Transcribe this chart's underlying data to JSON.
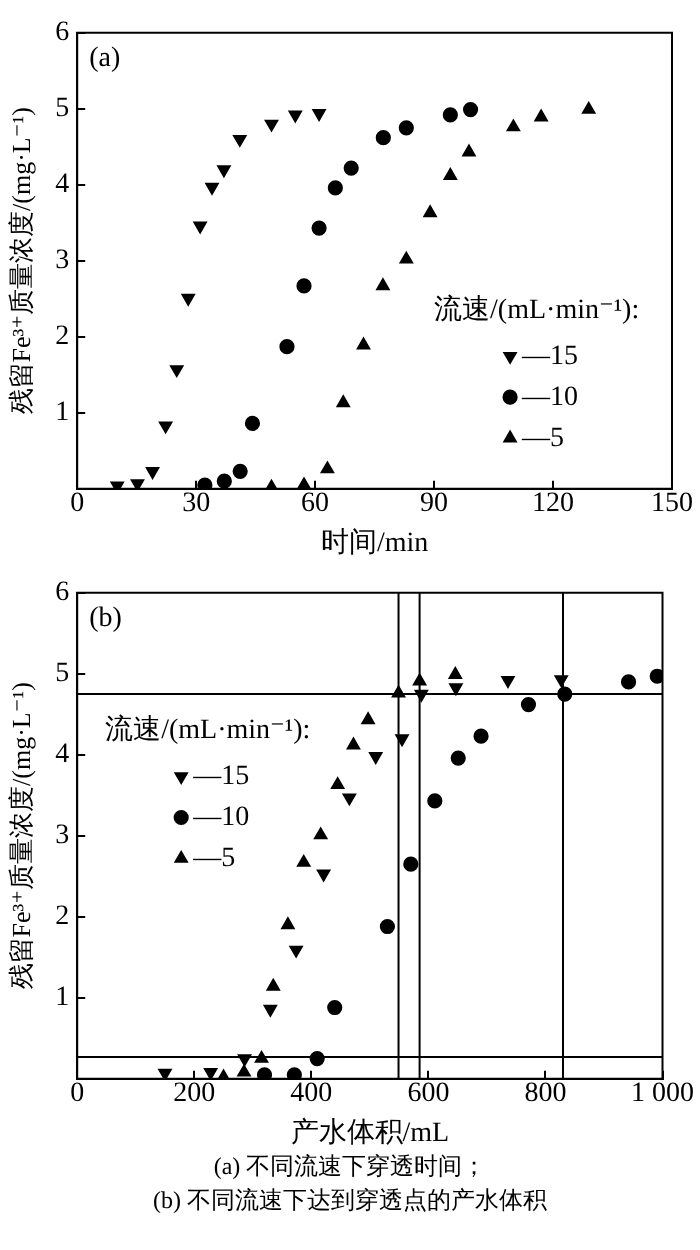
{
  "chart_data": [
    {
      "type": "scatter",
      "title": "(a)",
      "xlabel": "时间/min",
      "ylabel": "残留Fe³⁺质量浓度/(mg·L⁻¹)",
      "legend_title": "流速/(mL·min⁻¹):",
      "legend": "right",
      "xlim": [
        0,
        150
      ],
      "xticks": [
        0,
        30,
        60,
        90,
        120,
        150
      ],
      "ylim": [
        0,
        6
      ],
      "yticks": [
        {
          "value": 0,
          "label": null
        },
        1,
        2,
        3,
        4,
        5,
        6
      ],
      "grid": false,
      "series": [
        {
          "name": "—15",
          "color": "#000000",
          "marker": "triangle-down",
          "x": [
            10.1,
            15.2,
            19,
            22.3,
            25.1,
            28,
            31,
            34,
            37,
            41,
            49,
            55,
            61
          ],
          "values": [
            0.04,
            0.07,
            0.23,
            0.83,
            1.57,
            2.51,
            3.46,
            3.97,
            4.2,
            4.6,
            4.8,
            4.92,
            4.94
          ]
        },
        {
          "name": "—10",
          "color": "#000000",
          "marker": "circle",
          "x": [
            32.2,
            37.1,
            41.1,
            44.2,
            52.9,
            57.2,
            61,
            65.1,
            69.1,
            77.2,
            83,
            94.1,
            99.2
          ],
          "values": [
            0.05,
            0.1,
            0.23,
            0.86,
            1.87,
            2.67,
            3.43,
            3.96,
            4.22,
            4.62,
            4.75,
            4.92,
            4.99
          ]
        },
        {
          "name": "—5",
          "color": "#000000",
          "marker": "triangle",
          "x": [
            49,
            57.2,
            63.1,
            67.1,
            72.2,
            77.1,
            83,
            89,
            94.1,
            98.8,
            110,
            117,
            129
          ],
          "values": [
            0.02,
            0.05,
            0.26,
            1.13,
            1.89,
            2.67,
            3.02,
            3.63,
            4.12,
            4.43,
            4.76,
            4.89,
            4.99
          ]
        }
      ]
    },
    {
      "type": "scatter",
      "title": "(b)",
      "xlabel": "产水体积/mL",
      "ylabel": "残留Fe³⁺质量浓度/(mg·L⁻¹)",
      "legend_title": "流速/(mL·min⁻¹):",
      "legend": "left",
      "xlim": [
        0,
        1000
      ],
      "xticks": [
        0,
        200,
        400,
        600,
        800,
        {
          "value": 1000,
          "label": "1 000"
        }
      ],
      "ylim": [
        0,
        6
      ],
      "yticks": [
        {
          "value": 0,
          "label": null
        },
        1,
        2,
        3,
        4,
        5,
        6
      ],
      "grid": false,
      "ref_lines": [
        {
          "axis": "y",
          "value": 4.75,
          "color": "#000000"
        },
        {
          "axis": "y",
          "value": 0.27,
          "color": "#000000"
        },
        {
          "axis": "x",
          "value": 549,
          "color": "#000000"
        },
        {
          "axis": "x",
          "value": 585,
          "color": "#000000"
        },
        {
          "axis": "x",
          "value": 830,
          "color": "#000000"
        }
      ],
      "annotations": [
        "(a)  不同流速下穿透时间；",
        "(b)  不同流速下达到穿透点的产水体积"
      ],
      "series": [
        {
          "name": "—15",
          "color": "#000000",
          "marker": "triangle-down",
          "x": [
            150,
            228,
            286,
            330,
            374,
            421,
            465,
            510,
            555,
            588,
            647,
            736,
            827
          ],
          "values": [
            0.07,
            0.08,
            0.25,
            0.86,
            1.59,
            2.53,
            3.47,
            3.98,
            4.2,
            4.75,
            4.83,
            4.92,
            4.93
          ]
        },
        {
          "name": "—10",
          "color": "#000000",
          "marker": "circle",
          "x": [
            320,
            371,
            410,
            440,
            530,
            570,
            611,
            651,
            690,
            771,
            833,
            942,
            991
          ],
          "values": [
            0.05,
            0.05,
            0.25,
            0.88,
            1.88,
            2.65,
            3.43,
            3.96,
            4.23,
            4.62,
            4.75,
            4.9,
            4.97
          ]
        },
        {
          "name": "—5",
          "color": "#000000",
          "marker": "triangle",
          "x": [
            250,
            285,
            315,
            335,
            360,
            387,
            416,
            445,
            472,
            497,
            549,
            585,
            646
          ],
          "values": [
            0.02,
            0.08,
            0.25,
            1.14,
            1.9,
            2.67,
            3.01,
            3.63,
            4.12,
            4.43,
            4.76,
            4.91,
            4.99
          ]
        }
      ]
    }
  ]
}
